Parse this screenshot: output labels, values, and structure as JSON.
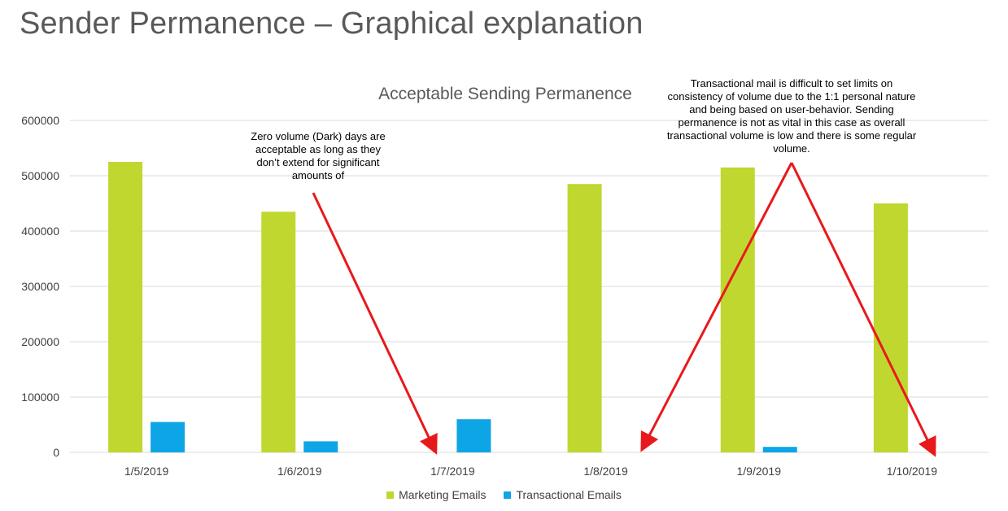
{
  "slide": {
    "title": "Sender Permanence – Graphical explanation"
  },
  "colors": {
    "marketing": "#c0d72f",
    "transactional": "#0ea5e6",
    "arrow": "#e8191b",
    "grid": "#d9d9d9"
  },
  "annotations": {
    "dark_days": "Zero volume (Dark) days are acceptable as long as they don’t extend for significant amounts of",
    "transactional": "Transactional mail is difficult to set limits on consistency of volume due to the 1:1 personal nature and being based on user-behavior. Sending permanence is not as vital in this case as overall transactional volume is low and there is some regular volume."
  },
  "chart_data": {
    "type": "bar",
    "title": "Acceptable Sending Permanence",
    "xlabel": "",
    "ylabel": "",
    "categories": [
      "1/5/2019",
      "1/6/2019",
      "1/7/2019",
      "1/8/2019",
      "1/9/2019",
      "1/10/2019"
    ],
    "series": [
      {
        "name": "Marketing Emails",
        "values": [
          525000,
          435000,
          0,
          485000,
          515000,
          450000
        ]
      },
      {
        "name": "Transactional Emails",
        "values": [
          55000,
          20000,
          60000,
          0,
          10000,
          0
        ]
      }
    ],
    "ylim": [
      0,
      600000
    ],
    "yticks": [
      0,
      100000,
      200000,
      300000,
      400000,
      500000,
      600000
    ],
    "grid": true,
    "legend": "bottom"
  }
}
